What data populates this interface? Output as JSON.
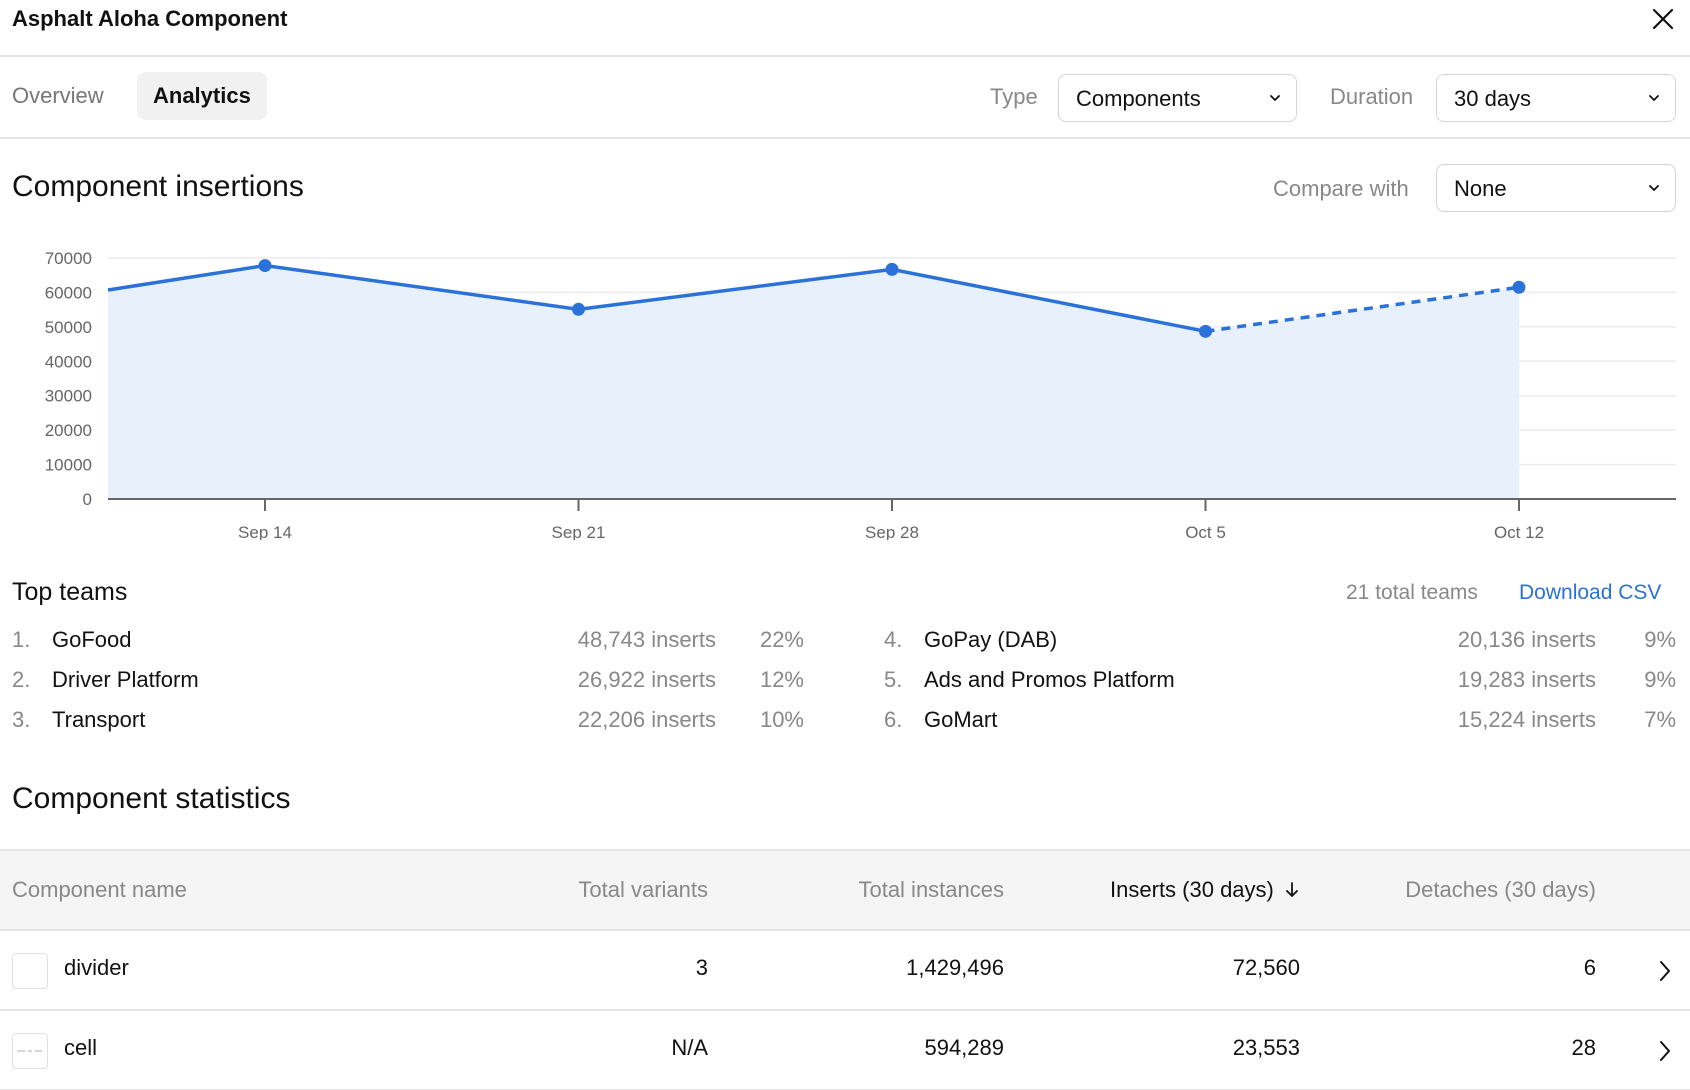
{
  "window": {
    "title": "Asphalt Aloha Component"
  },
  "tabs": [
    {
      "label": "Overview",
      "active": false
    },
    {
      "label": "Analytics",
      "active": true
    }
  ],
  "filters": {
    "type_label": "Type",
    "type_value": "Components",
    "duration_label": "Duration",
    "duration_value": "30 days"
  },
  "insertions": {
    "heading": "Component insertions",
    "compare_label": "Compare with",
    "compare_value": "None"
  },
  "chart_data": {
    "type": "area",
    "title": "Component insertions",
    "xlabel": "",
    "ylabel": "",
    "ylim": [
      0,
      70000
    ],
    "yticks": [
      "0",
      "10000",
      "20000",
      "30000",
      "40000",
      "50000",
      "60000",
      "70000"
    ],
    "categories": [
      "Sep 14",
      "Sep 21",
      "Sep 28",
      "Oct 5",
      "Oct 12"
    ],
    "leading_value": 60700,
    "values": [
      67800,
      55100,
      66700,
      48700,
      61500
    ],
    "projected_from_index": 3,
    "colors": {
      "line": "#2a72d9",
      "fill": "#e8f0fb",
      "grid": "#ececec",
      "axis": "#666666"
    }
  },
  "teams": {
    "heading": "Top teams",
    "total_label": "21 total teams",
    "download_label": "Download CSV",
    "items": [
      {
        "rank": "1.",
        "name": "GoFood",
        "inserts": "48,743 inserts",
        "pct": "22%"
      },
      {
        "rank": "2.",
        "name": "Driver Platform",
        "inserts": "26,922 inserts",
        "pct": "12%"
      },
      {
        "rank": "3.",
        "name": "Transport",
        "inserts": "22,206 inserts",
        "pct": "10%"
      },
      {
        "rank": "4.",
        "name": "GoPay (DAB)",
        "inserts": "20,136 inserts",
        "pct": "9%"
      },
      {
        "rank": "5.",
        "name": "Ads and Promos Platform",
        "inserts": "19,283 inserts",
        "pct": "9%"
      },
      {
        "rank": "6.",
        "name": "GoMart",
        "inserts": "15,224 inserts",
        "pct": "7%"
      }
    ]
  },
  "stats": {
    "heading": "Component statistics",
    "columns": {
      "name": "Component name",
      "variants": "Total variants",
      "instances": "Total instances",
      "inserts": "Inserts (30 days)",
      "detaches": "Detaches (30 days)"
    },
    "rows": [
      {
        "name": "divider",
        "variants": "3",
        "instances": "1,429,496",
        "inserts": "72,560",
        "detaches": "6"
      },
      {
        "name": "cell",
        "variants": "N/A",
        "instances": "594,289",
        "inserts": "23,553",
        "detaches": "28"
      }
    ]
  }
}
